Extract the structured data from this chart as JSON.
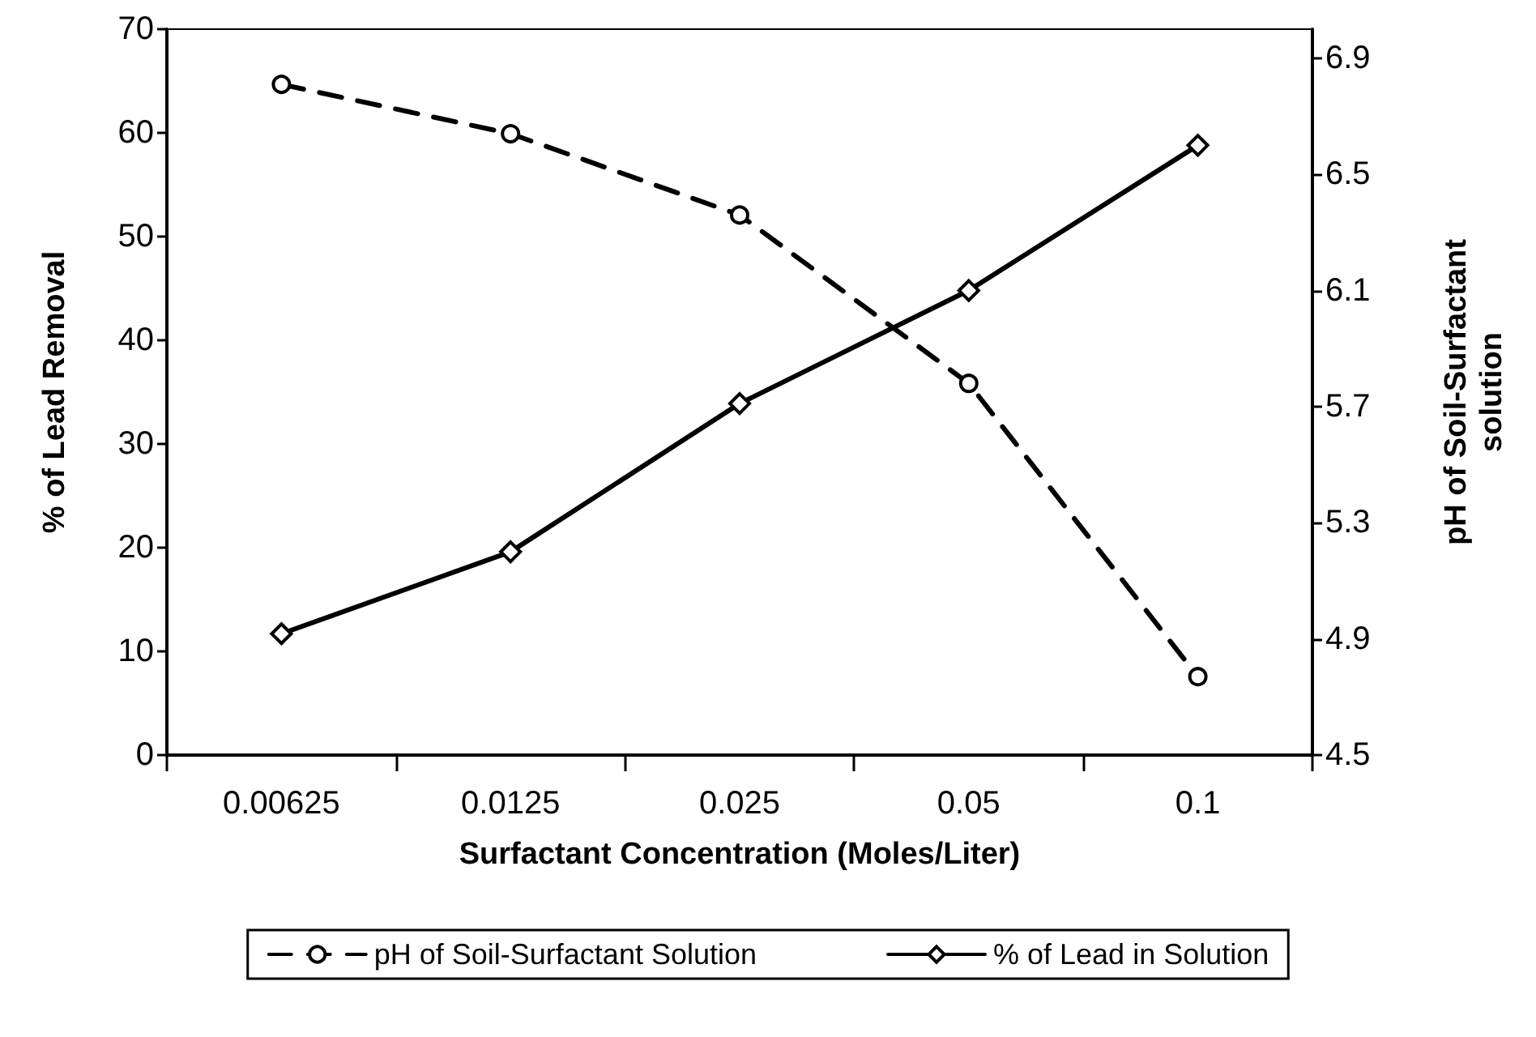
{
  "chart_data": {
    "type": "line",
    "xlabel": "Surfactant Concentration (Moles/Liter)",
    "ylabel": "% of Lead Removal",
    "y2label": "pH of Soil-Surfactant\nsolution",
    "categories": [
      "0.00625",
      "0.0125",
      "0.025",
      "0.05",
      "0.1"
    ],
    "series": [
      {
        "name": "pH of Soil-Surfactant Solution",
        "color": "#000000",
        "axis": "y2",
        "marker": "circle",
        "line_style": "dashed",
        "values": [
          6.81,
          6.64,
          6.36,
          5.78,
          4.77
        ]
      },
      {
        "name": "% of Lead in Solution",
        "color": "#000000",
        "marker": "diamond",
        "line_style": "solid",
        "values": [
          11.7,
          19.6,
          33.9,
          44.8,
          58.8
        ]
      }
    ],
    "ylim": [
      0,
      70
    ],
    "yticks": [
      0,
      10,
      20,
      30,
      40,
      50,
      60,
      70
    ],
    "y2lim": [
      4.5,
      7.0
    ],
    "y2ticks": [
      4.5,
      4.9,
      5.3,
      5.7,
      6.1,
      6.5,
      6.9
    ],
    "grid": false,
    "legend": "bottom"
  }
}
